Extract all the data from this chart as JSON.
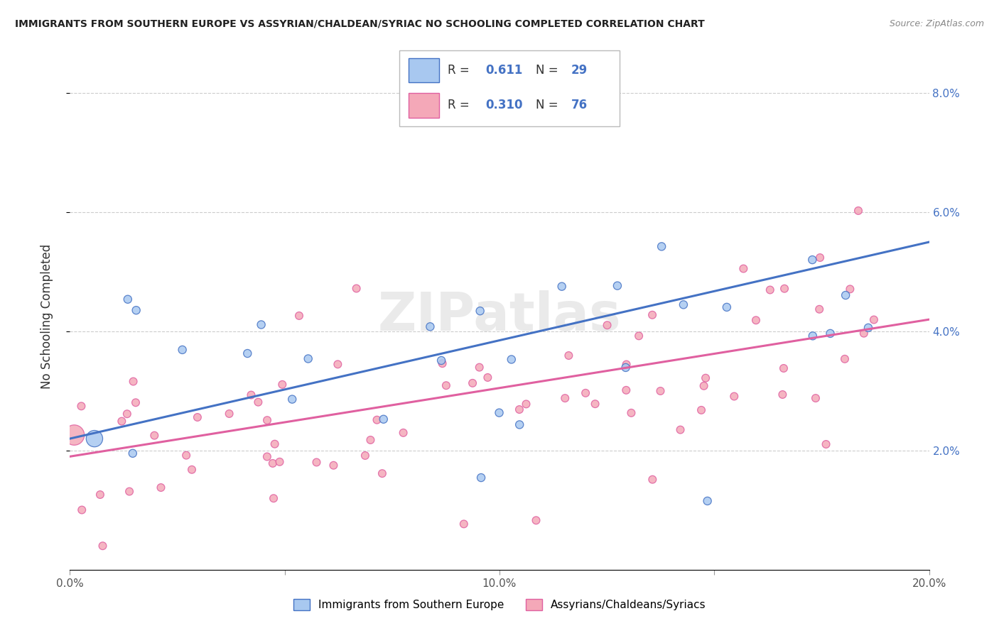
{
  "title": "IMMIGRANTS FROM SOUTHERN EUROPE VS ASSYRIAN/CHALDEAN/SYRIAC NO SCHOOLING COMPLETED CORRELATION CHART",
  "source": "Source: ZipAtlas.com",
  "ylabel": "No Schooling Completed",
  "legend_label_blue": "Immigrants from Southern Europe",
  "legend_label_pink": "Assyrians/Chaldeans/Syriacs",
  "R_blue": "0.611",
  "N_blue": "29",
  "R_pink": "0.310",
  "N_pink": "76",
  "color_blue": "#A8C8F0",
  "color_pink": "#F4A8B8",
  "line_blue": "#4472C4",
  "line_pink": "#E060A0",
  "background": "#FFFFFF",
  "blue_intercept": 0.022,
  "blue_slope": 0.165,
  "pink_intercept": 0.019,
  "pink_slope": 0.115,
  "xticklabels": [
    "0.0%",
    "",
    "10.0%",
    "",
    "20.0%"
  ],
  "xtick_vals": [
    0.0,
    0.05,
    0.1,
    0.15,
    0.2
  ],
  "ytick_vals": [
    0.02,
    0.04,
    0.06,
    0.08
  ],
  "yticklabels_right": [
    "2.0%",
    "4.0%",
    "6.0%",
    "8.0%"
  ]
}
